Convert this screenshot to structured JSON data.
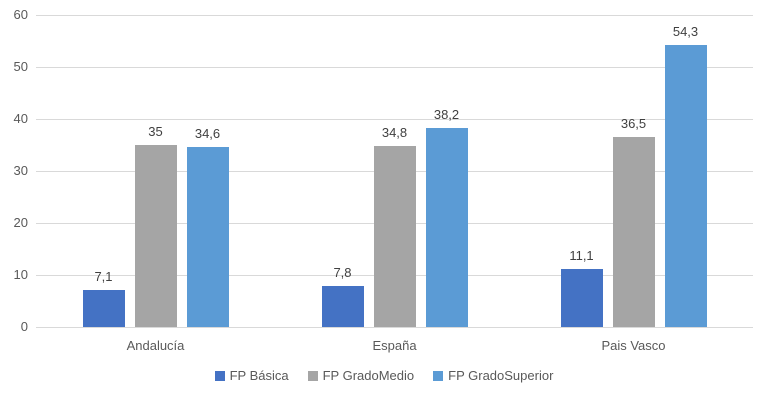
{
  "chart_data": {
    "type": "bar",
    "title": "",
    "xlabel": "",
    "ylabel": "",
    "categories": [
      "Andalucía",
      "España",
      "Pais Vasco"
    ],
    "series": [
      {
        "name": "FP Básica",
        "color": "#4472C4",
        "values": [
          7.1,
          7.8,
          11.1
        ],
        "labels": [
          "7,1",
          "7,8",
          "11,1"
        ]
      },
      {
        "name": "FP GradoMedio",
        "color": "#A5A5A5",
        "values": [
          35,
          34.8,
          36.5
        ],
        "labels": [
          "35",
          "34,8",
          "36,5"
        ]
      },
      {
        "name": "FP GradoSuperior",
        "color": "#5B9BD5",
        "values": [
          34.6,
          38.2,
          54.3
        ],
        "labels": [
          "34,6",
          "38,2",
          "54,3"
        ]
      }
    ],
    "ylim": [
      0,
      60
    ],
    "yticks": [
      0,
      10,
      20,
      30,
      40,
      50,
      60
    ],
    "grid": "horizontal",
    "gridline_color": "#d9d9d9",
    "axis_text_color": "#595959",
    "data_label_color": "#404040",
    "legend_position": "bottom"
  }
}
